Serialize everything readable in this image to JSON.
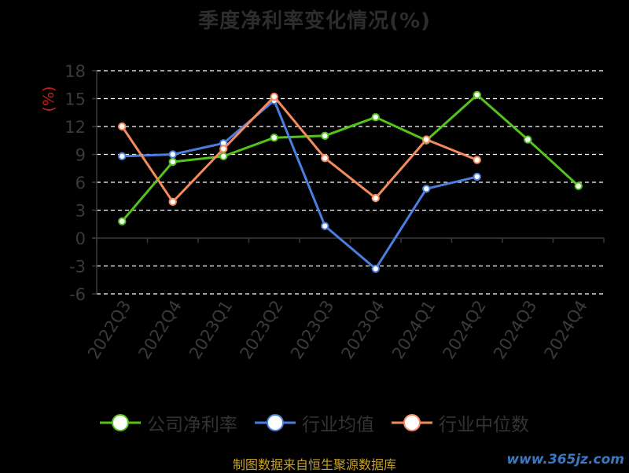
{
  "chart_data": {
    "type": "line",
    "title": "季度净利率变化情况(%)",
    "ylabel": "(%)",
    "ylim": [
      -6,
      18
    ],
    "yticks": [
      18,
      15,
      12,
      9,
      6,
      3,
      0,
      -3,
      -6
    ],
    "grid": true,
    "legend_position": "bottom",
    "categories": [
      "2022Q3",
      "2022Q4",
      "2023Q1",
      "2023Q2",
      "2023Q3",
      "2023Q4",
      "2024Q1",
      "2024Q2",
      "2024Q3",
      "2024Q4"
    ],
    "series": [
      {
        "name": "公司净利率",
        "color": "#52c41a",
        "values": [
          1.8,
          8.2,
          8.8,
          10.8,
          11.0,
          13.0,
          10.5,
          15.4,
          10.6,
          5.6
        ]
      },
      {
        "name": "行业均值",
        "color": "#4a7fe0",
        "values": [
          8.8,
          9.0,
          10.2,
          14.8,
          1.3,
          -3.3,
          5.3,
          6.6,
          null,
          null
        ]
      },
      {
        "name": "行业中位数",
        "color": "#f58a5b",
        "values": [
          12.0,
          3.9,
          9.6,
          15.2,
          8.6,
          4.3,
          10.6,
          8.4,
          null,
          null
        ]
      }
    ]
  },
  "footer": {
    "source": "制图数据来自恒生聚源数据库",
    "watermark": "www.365jz.com"
  }
}
